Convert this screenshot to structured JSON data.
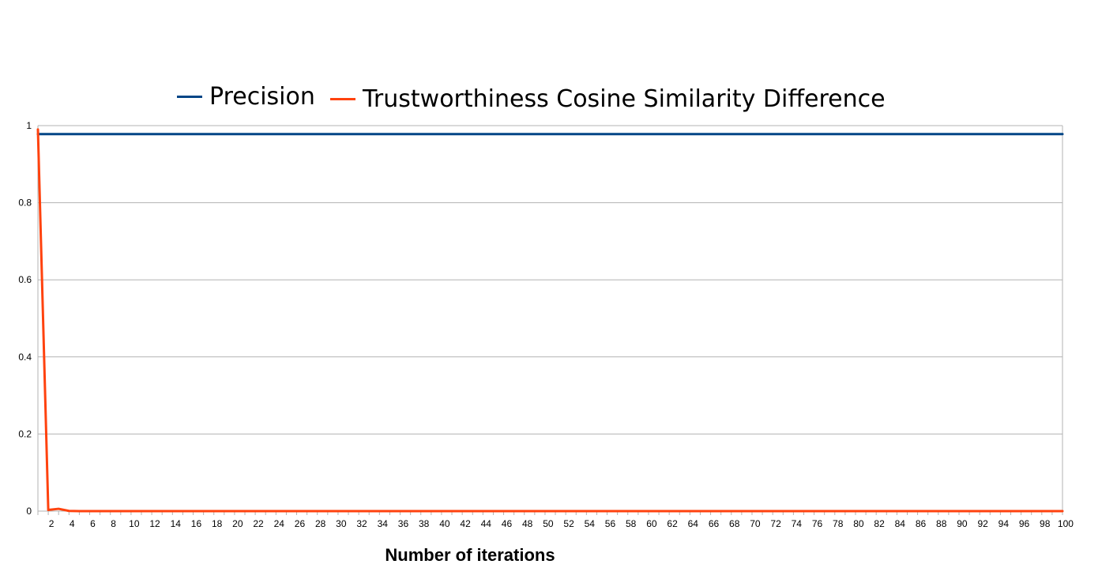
{
  "chart_data": {
    "type": "line",
    "title": "",
    "xlabel": "Number of iterations",
    "ylabel": "",
    "x": [
      1,
      2,
      3,
      4,
      5,
      6,
      7,
      8,
      9,
      10,
      11,
      12,
      13,
      14,
      15,
      16,
      17,
      18,
      19,
      20,
      21,
      22,
      23,
      24,
      25,
      26,
      27,
      28,
      29,
      30,
      31,
      32,
      33,
      34,
      35,
      36,
      37,
      38,
      39,
      40,
      41,
      42,
      43,
      44,
      45,
      46,
      47,
      48,
      49,
      50,
      51,
      52,
      53,
      54,
      55,
      56,
      57,
      58,
      59,
      60,
      61,
      62,
      63,
      64,
      65,
      66,
      67,
      68,
      69,
      70,
      71,
      72,
      73,
      74,
      75,
      76,
      77,
      78,
      79,
      80,
      81,
      82,
      83,
      84,
      85,
      86,
      87,
      88,
      89,
      90,
      91,
      92,
      93,
      94,
      95,
      96,
      97,
      98,
      99,
      100
    ],
    "x_tick_labels": [
      "2",
      "4",
      "6",
      "8",
      "10",
      "12",
      "14",
      "16",
      "18",
      "20",
      "22",
      "24",
      "26",
      "28",
      "30",
      "32",
      "34",
      "36",
      "38",
      "40",
      "42",
      "44",
      "46",
      "48",
      "50",
      "52",
      "54",
      "56",
      "58",
      "60",
      "62",
      "64",
      "66",
      "68",
      "70",
      "72",
      "74",
      "76",
      "78",
      "80",
      "82",
      "84",
      "86",
      "88",
      "90",
      "92",
      "94",
      "96",
      "98",
      "100"
    ],
    "y_ticks": [
      "0",
      "0.2",
      "0.4",
      "0.6",
      "0.8",
      "1"
    ],
    "ylim": [
      0,
      1
    ],
    "grid": true,
    "legend_position": "top",
    "series": [
      {
        "name": "Precision",
        "color": "#004586",
        "values": [
          0.978,
          0.978,
          0.978,
          0.978,
          0.978,
          0.978,
          0.978,
          0.978,
          0.978,
          0.978,
          0.978,
          0.978,
          0.978,
          0.978,
          0.978,
          0.978,
          0.978,
          0.978,
          0.978,
          0.978,
          0.978,
          0.978,
          0.978,
          0.978,
          0.978,
          0.978,
          0.978,
          0.978,
          0.978,
          0.978,
          0.978,
          0.978,
          0.978,
          0.978,
          0.978,
          0.978,
          0.978,
          0.978,
          0.978,
          0.978,
          0.978,
          0.978,
          0.978,
          0.978,
          0.978,
          0.978,
          0.978,
          0.978,
          0.978,
          0.978,
          0.978,
          0.978,
          0.978,
          0.978,
          0.978,
          0.978,
          0.978,
          0.978,
          0.978,
          0.978,
          0.978,
          0.978,
          0.978,
          0.978,
          0.978,
          0.978,
          0.978,
          0.978,
          0.978,
          0.978,
          0.978,
          0.978,
          0.978,
          0.978,
          0.978,
          0.978,
          0.978,
          0.978,
          0.978,
          0.978,
          0.978,
          0.978,
          0.978,
          0.978,
          0.978,
          0.978,
          0.978,
          0.978,
          0.978,
          0.978,
          0.978,
          0.978,
          0.978,
          0.978,
          0.978,
          0.978,
          0.978,
          0.978,
          0.978,
          0.978
        ]
      },
      {
        "name": "Trustworthiness Cosine Similarity Difference",
        "color": "#ff420e",
        "values": [
          0.99,
          0.003,
          0.006,
          0.0005,
          0,
          0,
          0,
          0,
          0,
          0,
          0,
          0,
          0,
          0,
          0,
          0,
          0,
          0,
          0,
          0,
          0,
          0,
          0,
          0,
          0,
          0,
          0,
          0,
          0,
          0,
          0,
          0,
          0,
          0,
          0,
          0,
          0,
          0,
          0,
          0,
          0,
          0,
          0,
          0,
          0,
          0,
          0,
          0,
          0,
          0,
          0,
          0,
          0,
          0,
          0,
          0,
          0,
          0,
          0,
          0,
          0,
          0,
          0,
          0,
          0,
          0,
          0,
          0,
          0,
          0,
          0,
          0,
          0,
          0,
          0,
          0,
          0,
          0,
          0,
          0,
          0,
          0,
          0,
          0,
          0,
          0,
          0,
          0,
          0,
          0,
          0,
          0,
          0,
          0,
          0,
          0,
          0,
          0,
          0,
          0
        ]
      }
    ]
  }
}
